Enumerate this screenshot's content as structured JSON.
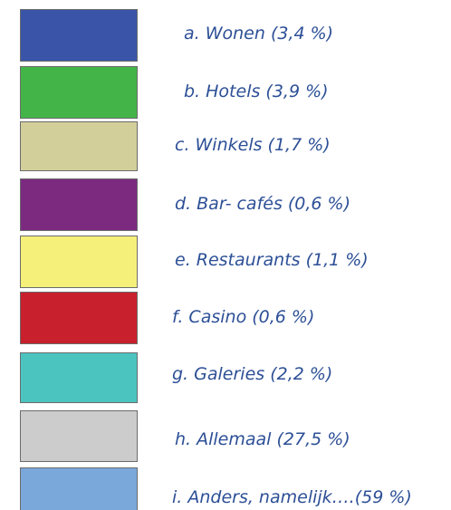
{
  "items": [
    {
      "label": "a. Wonen (3,4 %)",
      "color": "#3a55a8"
    },
    {
      "label": "b. Hotels (3,9 %)",
      "color": "#43b548"
    },
    {
      "label": "c. Winkels (1,7 %)",
      "color": "#d3cf9a"
    },
    {
      "label": "d. Bar- cafés (0,6 %)",
      "color": "#7b2a80"
    },
    {
      "label": "e. Restaurants  (1,1 %)",
      "color": "#f5f07a"
    },
    {
      "label": "f. Casino (0,6 %)",
      "color": "#c8202c"
    },
    {
      "label": "g. Galeries (2,2 %)",
      "color": "#4bc4c0"
    },
    {
      "label": "h. Allemaal (27,5 %)",
      "color": "#cccccc"
    },
    {
      "label": "i. Anders, namelijk….(59 %)",
      "color": "#7aa8da"
    }
  ]
}
